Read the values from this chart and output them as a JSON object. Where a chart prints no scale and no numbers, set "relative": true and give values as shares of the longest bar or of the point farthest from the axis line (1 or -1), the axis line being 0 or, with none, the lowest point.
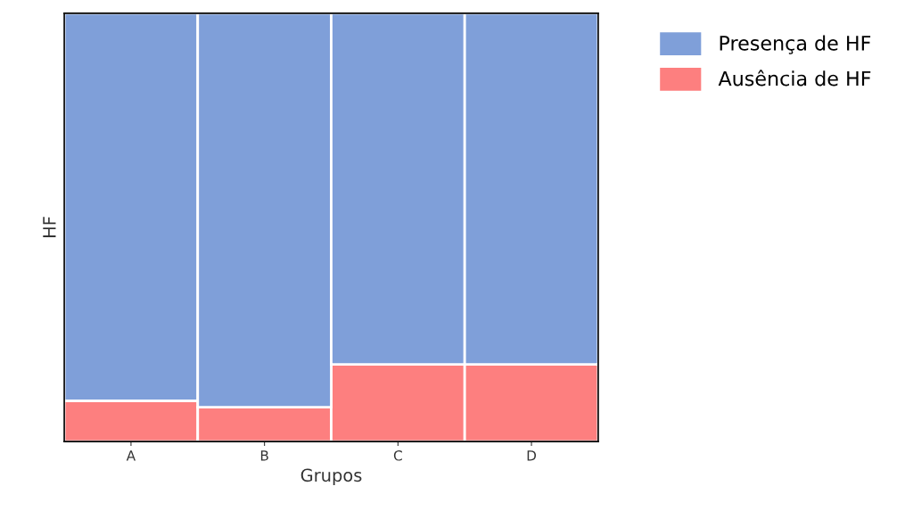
{
  "chart_data": {
    "type": "bar",
    "stacked": true,
    "relative": true,
    "xlabel": "Grupos",
    "ylabel": "HF",
    "categories": [
      "A",
      "B",
      "C",
      "D"
    ],
    "series": [
      {
        "name": "Ausência de HF",
        "color": "#fd7f7f",
        "values": [
          0.095,
          0.08,
          0.18,
          0.18
        ]
      },
      {
        "name": "Presença de HF",
        "color": "#7f9fd9",
        "values": [
          0.905,
          0.92,
          0.82,
          0.82
        ]
      }
    ],
    "grid": false,
    "legend": "top right"
  }
}
